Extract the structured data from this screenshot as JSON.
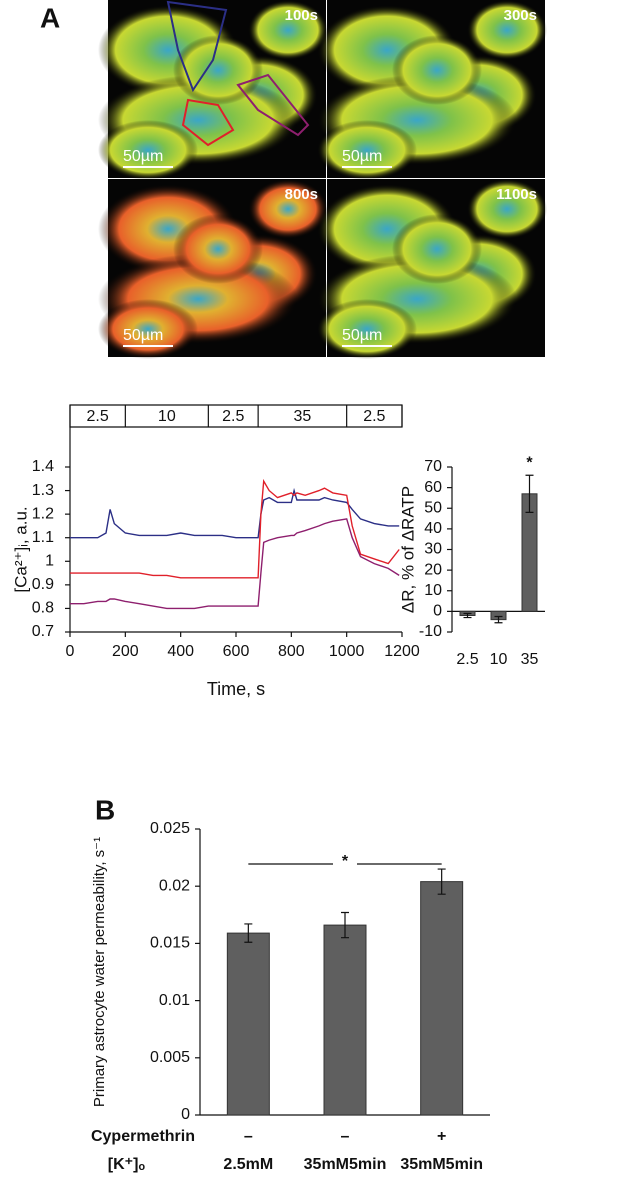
{
  "figure": {
    "panel_a_label": "A",
    "panel_b_label": "B",
    "images": [
      {
        "time": "100s",
        "scale_bar": "50µm"
      },
      {
        "time": "300s",
        "scale_bar": "50µm"
      },
      {
        "time": "800s",
        "scale_bar": "50µm"
      },
      {
        "time": "1100s",
        "scale_bar": "50µm"
      }
    ]
  },
  "chart_data": [
    {
      "type": "line",
      "xlabel": "Time, s",
      "ylabel": "[Ca²⁺]ᵢ, a.u.",
      "x": [
        0,
        50,
        100,
        130,
        145,
        160,
        200,
        250,
        300,
        350,
        400,
        450,
        500,
        550,
        600,
        650,
        680,
        690,
        700,
        720,
        750,
        800,
        810,
        820,
        850,
        900,
        920,
        950,
        1000,
        1020,
        1050,
        1100,
        1150,
        1190
      ],
      "series": [
        {
          "color": "#2b2f86",
          "values": [
            1.1,
            1.1,
            1.1,
            1.12,
            1.22,
            1.16,
            1.12,
            1.11,
            1.11,
            1.11,
            1.12,
            1.11,
            1.11,
            1.11,
            1.1,
            1.1,
            1.1,
            1.2,
            1.26,
            1.27,
            1.25,
            1.25,
            1.3,
            1.26,
            1.26,
            1.26,
            1.27,
            1.26,
            1.25,
            1.22,
            1.18,
            1.16,
            1.15,
            1.15
          ]
        },
        {
          "color": "#e0202a",
          "values": [
            0.95,
            0.95,
            0.95,
            0.95,
            0.95,
            0.95,
            0.95,
            0.95,
            0.94,
            0.94,
            0.93,
            0.93,
            0.93,
            0.93,
            0.93,
            0.93,
            0.93,
            1.2,
            1.34,
            1.3,
            1.27,
            1.29,
            1.28,
            1.29,
            1.28,
            1.3,
            1.31,
            1.29,
            1.28,
            1.15,
            1.03,
            1.01,
            0.99,
            1.05
          ]
        },
        {
          "color": "#8e1f6e",
          "values": [
            0.82,
            0.82,
            0.83,
            0.83,
            0.84,
            0.84,
            0.83,
            0.82,
            0.81,
            0.8,
            0.8,
            0.8,
            0.81,
            0.81,
            0.81,
            0.81,
            0.81,
            0.95,
            1.08,
            1.09,
            1.1,
            1.11,
            1.11,
            1.12,
            1.13,
            1.15,
            1.16,
            1.17,
            1.18,
            1.1,
            1.02,
            0.99,
            0.97,
            0.94
          ]
        }
      ],
      "xlim": [
        0,
        1200
      ],
      "xticks": [
        0,
        200,
        400,
        600,
        800,
        1000,
        1200
      ],
      "ylim": [
        0.7,
        1.4
      ],
      "yticks": [
        0.7,
        0.8,
        0.9,
        1,
        1.1,
        1.2,
        1.3,
        1.4
      ],
      "condition_bar": {
        "labels": [
          "2.5",
          "10",
          "2.5",
          "35",
          "2.5"
        ],
        "edges": [
          0,
          200,
          500,
          680,
          1000,
          1200
        ]
      }
    },
    {
      "type": "bar",
      "ylabel": "ΔR, % of ΔRATP",
      "categories": [
        "2.5",
        "10",
        "35"
      ],
      "values": [
        -2,
        -4,
        57
      ],
      "errors": [
        1,
        1.5,
        9
      ],
      "color": "#5f5f5f",
      "ylim": [
        -10,
        70
      ],
      "yticks": [
        -10,
        0,
        10,
        20,
        30,
        40,
        50,
        60,
        70
      ],
      "annotation": "*"
    },
    {
      "type": "bar",
      "ylabel": "Primary astrocyte water permeability, s⁻¹",
      "category_rows": [
        {
          "name": "Cypermethrin",
          "labels": [
            "–",
            "–",
            "+"
          ]
        },
        {
          "name": "[K⁺]ₒ",
          "labels": [
            "2.5mM",
            "35mM5min",
            "35mM5min"
          ]
        }
      ],
      "values": [
        0.0159,
        0.0166,
        0.0204
      ],
      "errors": [
        0.0008,
        0.0011,
        0.0011
      ],
      "color": "#5f5f5f",
      "ylim": [
        0,
        0.025
      ],
      "yticks": [
        0,
        0.005,
        0.01,
        0.015,
        0.02,
        0.025
      ],
      "annotation": "*"
    }
  ]
}
